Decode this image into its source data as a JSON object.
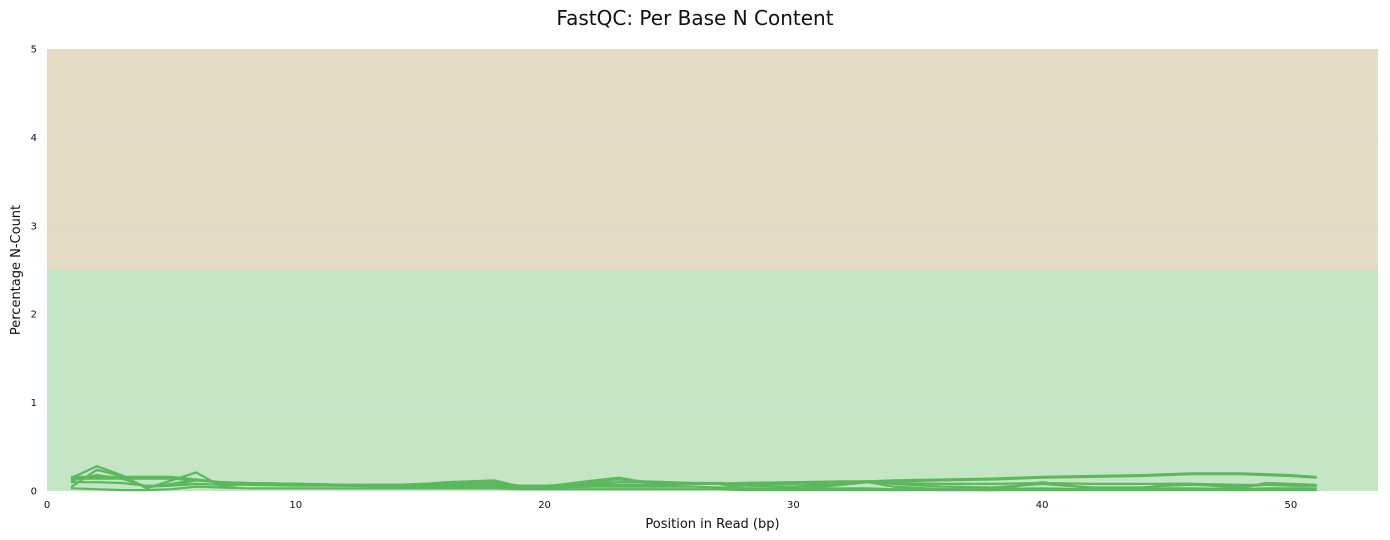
{
  "chart_data": {
    "type": "line",
    "title": "FastQC: Per Base N Content",
    "xlabel": "Position in Read (bp)",
    "ylabel": "Percentage N-Count",
    "xlim": [
      0,
      53.5
    ],
    "ylim": [
      0,
      5
    ],
    "xticks": [
      0,
      10,
      20,
      30,
      40,
      50
    ],
    "yticks": [
      0,
      1,
      2,
      3,
      4,
      5
    ],
    "bands": [
      {
        "from": 0,
        "to": 2.5,
        "color": "#c4e6c5"
      },
      {
        "from": 2.5,
        "to": 5,
        "color": "#e4dbc4"
      }
    ],
    "grid": true,
    "line_color": "#5cb85c",
    "x": [
      1,
      2,
      3,
      4,
      5,
      6,
      7,
      8,
      10,
      12,
      14,
      16,
      18,
      19,
      20,
      22,
      23,
      24,
      26,
      27,
      28,
      30,
      32,
      33,
      34,
      36,
      38,
      40,
      42,
      44,
      45,
      46,
      48,
      49,
      50,
      51
    ],
    "series": [
      {
        "values": [
          0.15,
          0.28,
          0.18,
          0.03,
          0.12,
          0.21,
          0.05,
          0.08,
          0.07,
          0.06,
          0.05,
          0.1,
          0.12,
          0.05,
          0.05,
          0.12,
          0.15,
          0.1,
          0.08,
          0.08,
          0.03,
          0.02,
          0.07,
          0.1,
          0.05,
          0.02,
          0.01,
          0.1,
          0.03,
          0.02,
          0.08,
          0.08,
          0.03,
          0.09,
          0.08,
          0.07
        ]
      },
      {
        "values": [
          0.05,
          0.24,
          0.17,
          0.04,
          0.08,
          0.13,
          0.09,
          0.08,
          0.07,
          0.06,
          0.06,
          0.08,
          0.09,
          0.05,
          0.05,
          0.11,
          0.13,
          0.11,
          0.09,
          0.08,
          0.06,
          0.05,
          0.08,
          0.11,
          0.08,
          0.05,
          0.04,
          0.08,
          0.04,
          0.04,
          0.06,
          0.07,
          0.05,
          0.07,
          0.06,
          0.06
        ]
      },
      {
        "values": [
          0.12,
          0.18,
          0.14,
          0.05,
          0.06,
          0.12,
          0.1,
          0.09,
          0.08,
          0.07,
          0.07,
          0.09,
          0.1,
          0.06,
          0.06,
          0.09,
          0.1,
          0.1,
          0.09,
          0.09,
          0.08,
          0.08,
          0.09,
          0.1,
          0.09,
          0.08,
          0.08,
          0.09,
          0.08,
          0.08,
          0.08,
          0.08,
          0.07,
          0.07,
          0.06,
          0.06
        ]
      },
      {
        "values": [
          0.16,
          0.16,
          0.16,
          0.16,
          0.16,
          0.13,
          0.1,
          0.09,
          0.08,
          0.07,
          0.07,
          0.07,
          0.07,
          0.06,
          0.06,
          0.07,
          0.07,
          0.07,
          0.08,
          0.08,
          0.09,
          0.1,
          0.11,
          0.11,
          0.12,
          0.13,
          0.14,
          0.16,
          0.17,
          0.18,
          0.19,
          0.2,
          0.2,
          0.19,
          0.18,
          0.16
        ]
      },
      {
        "values": [
          0.14,
          0.14,
          0.14,
          0.14,
          0.14,
          0.12,
          0.1,
          0.09,
          0.08,
          0.07,
          0.07,
          0.07,
          0.07,
          0.06,
          0.06,
          0.07,
          0.07,
          0.07,
          0.08,
          0.08,
          0.09,
          0.1,
          0.1,
          0.11,
          0.11,
          0.12,
          0.13,
          0.15,
          0.16,
          0.17,
          0.18,
          0.19,
          0.19,
          0.18,
          0.17,
          0.15
        ]
      },
      {
        "values": [
          0.1,
          0.1,
          0.09,
          0.06,
          0.06,
          0.08,
          0.07,
          0.07,
          0.06,
          0.06,
          0.05,
          0.05,
          0.05,
          0.04,
          0.04,
          0.05,
          0.05,
          0.05,
          0.05,
          0.04,
          0.03,
          0.03,
          0.03,
          0.03,
          0.02,
          0.02,
          0.02,
          0.03,
          0.02,
          0.02,
          0.03,
          0.03,
          0.02,
          0.03,
          0.03,
          0.03
        ]
      },
      {
        "values": [
          0.03,
          0.02,
          0.01,
          0.01,
          0.02,
          0.05,
          0.04,
          0.03,
          0.03,
          0.03,
          0.03,
          0.03,
          0.03,
          0.02,
          0.02,
          0.02,
          0.02,
          0.02,
          0.02,
          0.02,
          0.01,
          0.01,
          0.01,
          0.01,
          0.01,
          0.01,
          0.01,
          0.01,
          0.01,
          0.01,
          0.01,
          0.01,
          0.01,
          0.01,
          0.01,
          0.01
        ]
      }
    ]
  }
}
